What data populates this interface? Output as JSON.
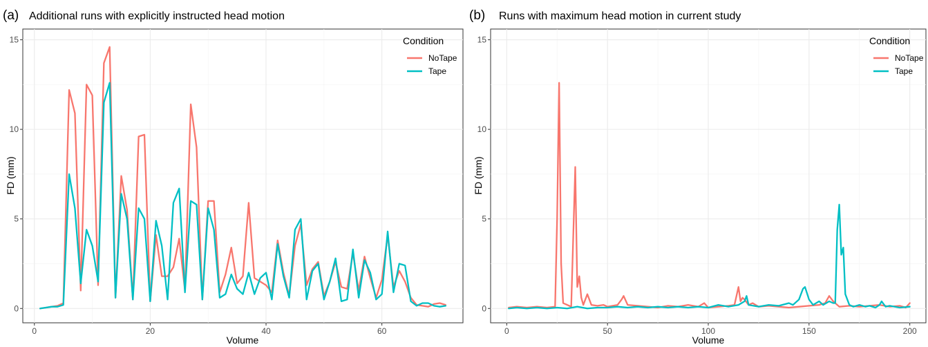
{
  "colors": {
    "NoTape": "#F8766D",
    "Tape": "#00BFC4"
  },
  "chart_data": [
    {
      "type": "line",
      "tag": "(a)",
      "title": "Additional runs with explicitly instructed head motion",
      "xlabel": "Volume",
      "ylabel": "FD (mm)",
      "xlim": [
        -2,
        74
      ],
      "ylim": [
        -0.8,
        15.6
      ],
      "xticks": [
        0,
        20,
        40,
        60
      ],
      "yticks": [
        0,
        5,
        10,
        15
      ],
      "grid": true,
      "legend": {
        "title": "Condition",
        "position": "top-right",
        "entries": [
          "NoTape",
          "Tape"
        ]
      },
      "series": [
        {
          "name": "NoTape",
          "x": [
            1,
            2,
            3,
            4,
            5,
            6,
            7,
            8,
            9,
            10,
            11,
            12,
            13,
            14,
            15,
            16,
            17,
            18,
            19,
            20,
            21,
            22,
            23,
            24,
            25,
            26,
            27,
            28,
            29,
            30,
            31,
            32,
            33,
            34,
            35,
            36,
            37,
            38,
            39,
            40,
            41,
            42,
            43,
            44,
            45,
            46,
            47,
            48,
            49,
            50,
            51,
            52,
            53,
            54,
            55,
            56,
            57,
            58,
            59,
            60,
            61,
            62,
            63,
            64,
            65,
            66,
            67,
            68,
            69,
            70,
            71
          ],
          "values": [
            0,
            0.05,
            0.1,
            0.15,
            0.3,
            12.2,
            10.9,
            1.0,
            12.5,
            11.9,
            1.3,
            13.7,
            14.6,
            0.6,
            7.4,
            5.5,
            0.5,
            9.6,
            9.7,
            0.4,
            4.1,
            1.8,
            1.8,
            2.3,
            3.9,
            1.0,
            11.4,
            9.0,
            0.5,
            6.0,
            6.0,
            0.9,
            1.9,
            3.4,
            1.4,
            1.8,
            5.9,
            1.7,
            1.5,
            1.3,
            0.9,
            3.8,
            2.0,
            0.7,
            3.5,
            4.7,
            1.3,
            2.2,
            2.6,
            0.7,
            1.5,
            2.6,
            1.2,
            1.1,
            3.1,
            1.0,
            2.9,
            1.7,
            0.6,
            1.6,
            4.1,
            1.2,
            2.1,
            1.5,
            0.6,
            0.2,
            0.15,
            0.1,
            0.25,
            0.3,
            0.2
          ]
        },
        {
          "name": "Tape",
          "x": [
            1,
            2,
            3,
            4,
            5,
            6,
            7,
            8,
            9,
            10,
            11,
            12,
            13,
            14,
            15,
            16,
            17,
            18,
            19,
            20,
            21,
            22,
            23,
            24,
            25,
            26,
            27,
            28,
            29,
            30,
            31,
            32,
            33,
            34,
            35,
            36,
            37,
            38,
            39,
            40,
            41,
            42,
            43,
            44,
            45,
            46,
            47,
            48,
            49,
            50,
            51,
            52,
            53,
            54,
            55,
            56,
            57,
            58,
            59,
            60,
            61,
            62,
            63,
            64,
            65,
            66,
            67,
            68,
            69,
            70,
            71
          ],
          "values": [
            0,
            0.05,
            0.1,
            0.1,
            0.2,
            7.5,
            5.6,
            1.4,
            4.4,
            3.5,
            1.5,
            11.5,
            12.6,
            0.6,
            6.4,
            5.0,
            0.5,
            5.6,
            5.0,
            0.4,
            4.9,
            3.5,
            0.5,
            5.9,
            6.7,
            0.9,
            6.0,
            5.8,
            0.5,
            5.6,
            4.4,
            0.6,
            0.8,
            1.9,
            1.1,
            0.8,
            2.0,
            0.8,
            1.7,
            2.0,
            0.5,
            3.6,
            1.8,
            0.6,
            4.4,
            5.0,
            0.5,
            2.1,
            2.5,
            0.5,
            1.5,
            2.8,
            0.4,
            0.5,
            3.3,
            0.6,
            2.7,
            2.0,
            0.5,
            0.8,
            4.3,
            0.9,
            2.5,
            2.4,
            0.4,
            0.15,
            0.3,
            0.3,
            0.15,
            0.1,
            0.15
          ]
        }
      ]
    },
    {
      "type": "line",
      "tag": "(b)",
      "title": "Runs with maximum head motion in current study",
      "xlabel": "Volume",
      "ylabel": "FD (mm)",
      "xlim": [
        -8,
        208
      ],
      "ylim": [
        -0.8,
        15.6
      ],
      "xticks": [
        0,
        50,
        100,
        150,
        200
      ],
      "yticks": [
        0,
        5,
        10,
        15
      ],
      "grid": true,
      "legend": {
        "title": "Condition",
        "position": "top-right",
        "entries": [
          "NoTape",
          "Tape"
        ]
      },
      "series": [
        {
          "name": "NoTape",
          "x": [
            1,
            5,
            10,
            15,
            20,
            24,
            25,
            26,
            27,
            28,
            30,
            32,
            33,
            34,
            35,
            36,
            37,
            38,
            40,
            42,
            45,
            48,
            50,
            55,
            57,
            58,
            60,
            65,
            70,
            75,
            80,
            85,
            90,
            95,
            98,
            100,
            105,
            110,
            113,
            115,
            116,
            117,
            118,
            120,
            122,
            125,
            130,
            135,
            140,
            145,
            150,
            155,
            158,
            160,
            162,
            165,
            170,
            175,
            180,
            185,
            190,
            195,
            198,
            200
          ],
          "values": [
            0.05,
            0.1,
            0.05,
            0.1,
            0.05,
            0.1,
            5.0,
            12.6,
            2.5,
            0.3,
            0.2,
            0.1,
            4.0,
            7.9,
            1.2,
            1.8,
            0.6,
            0.2,
            0.8,
            0.2,
            0.15,
            0.2,
            0.1,
            0.2,
            0.5,
            0.7,
            0.2,
            0.15,
            0.1,
            0.05,
            0.15,
            0.1,
            0.2,
            0.1,
            0.3,
            0.05,
            0.1,
            0.15,
            0.2,
            1.2,
            0.4,
            0.6,
            0.5,
            0.2,
            0.3,
            0.1,
            0.15,
            0.1,
            0.05,
            0.1,
            0.15,
            0.2,
            0.3,
            0.7,
            0.4,
            0.1,
            0.15,
            0.1,
            0.15,
            0.2,
            0.1,
            0.15,
            0.05,
            0.3
          ]
        },
        {
          "name": "Tape",
          "x": [
            1,
            5,
            10,
            15,
            20,
            25,
            30,
            35,
            40,
            45,
            50,
            55,
            60,
            65,
            70,
            75,
            80,
            85,
            90,
            95,
            100,
            105,
            110,
            115,
            118,
            119,
            120,
            125,
            130,
            135,
            140,
            142,
            145,
            147,
            148,
            150,
            152,
            155,
            157,
            160,
            162,
            163,
            164,
            165,
            166,
            167,
            168,
            170,
            172,
            175,
            178,
            180,
            183,
            185,
            186,
            188,
            190,
            195,
            200
          ],
          "values": [
            0,
            0.05,
            0,
            0.05,
            0,
            0.05,
            0,
            0.1,
            0,
            0.05,
            0.05,
            0.1,
            0.05,
            0.1,
            0.05,
            0.1,
            0.05,
            0.1,
            0.05,
            0.1,
            0.05,
            0.2,
            0.1,
            0.2,
            0.4,
            0.7,
            0.2,
            0.1,
            0.2,
            0.15,
            0.3,
            0.2,
            0.5,
            1.1,
            1.2,
            0.5,
            0.2,
            0.4,
            0.2,
            0.4,
            0.3,
            0.3,
            4.4,
            5.8,
            3.0,
            3.4,
            0.8,
            0.2,
            0.1,
            0.2,
            0.1,
            0.15,
            0.05,
            0.2,
            0.4,
            0.1,
            0.15,
            0.05,
            0.1
          ]
        }
      ]
    }
  ]
}
